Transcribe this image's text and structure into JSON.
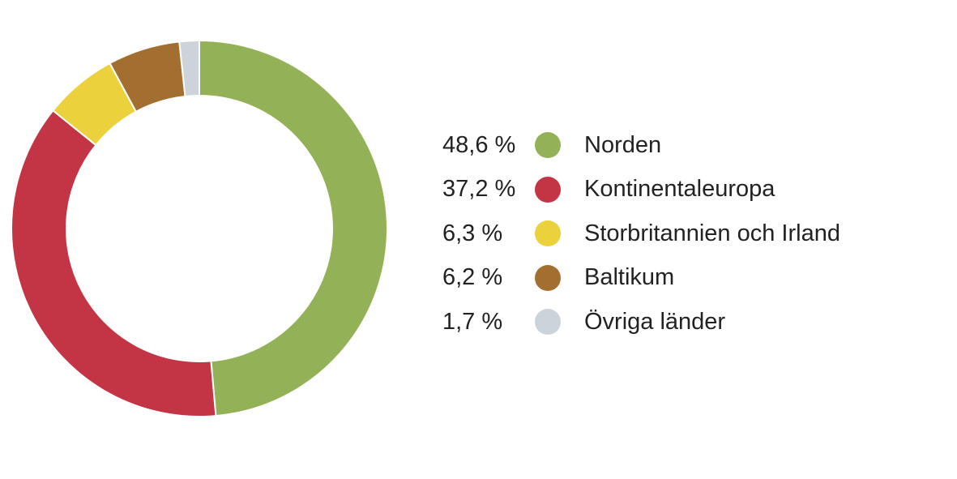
{
  "chart_data": {
    "type": "pie",
    "variant": "donut",
    "start_angle_deg": 0,
    "direction": "clockwise",
    "legend_position": "right",
    "title": "",
    "slices": [
      {
        "label": "Norden",
        "value": 48.6,
        "display": "48,6 %",
        "color": "#93b257"
      },
      {
        "label": "Kontinentaleuropa",
        "value": 37.2,
        "display": "37,2 %",
        "color": "#c33444"
      },
      {
        "label": "Storbritannien och Irland",
        "value": 6.3,
        "display": "6,3 %",
        "color": "#ebd13b"
      },
      {
        "label": "Baltikum",
        "value": 6.2,
        "display": "6,2 %",
        "color": "#a36f31"
      },
      {
        "label": "Övriga länder",
        "value": 1.7,
        "display": "1,7 %",
        "color": "#ccd3da"
      }
    ]
  }
}
